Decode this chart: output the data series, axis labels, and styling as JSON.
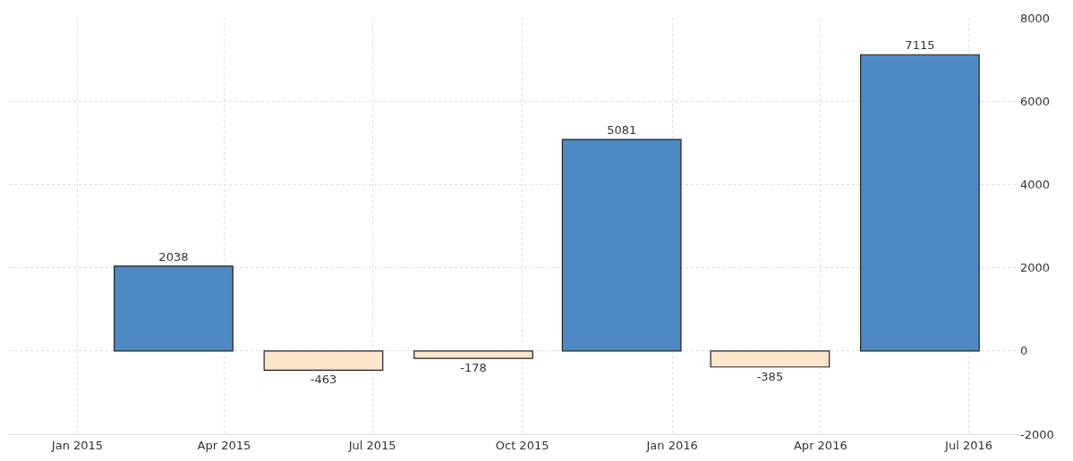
{
  "chart_data": {
    "type": "bar",
    "x": [
      "2015-03-01",
      "2015-06-01",
      "2015-09-01",
      "2015-12-01",
      "2016-03-01",
      "2016-06-01"
    ],
    "values": [
      2038,
      -463,
      -178,
      5081,
      -385,
      7115
    ],
    "colors": [
      "#4f89c3",
      "#fbe6cc",
      "#fbe6cc",
      "#4f89c3",
      "#fbe6cc",
      "#4f89c3"
    ],
    "data_labels": true,
    "xlim": [
      "2014-11-20",
      "2016-08-01"
    ],
    "xticks": [
      {
        "value": "2015-01-01",
        "label": "Jan 2015"
      },
      {
        "value": "2015-04-01",
        "label": "Apr 2015"
      },
      {
        "value": "2015-07-01",
        "label": "Jul 2015"
      },
      {
        "value": "2015-10-01",
        "label": "Oct 2015"
      },
      {
        "value": "2016-01-01",
        "label": "Jan 2016"
      },
      {
        "value": "2016-04-01",
        "label": "Apr 2016"
      },
      {
        "value": "2016-07-01",
        "label": "Jul 2016"
      }
    ],
    "ylim": [
      -2000,
      8000
    ],
    "yticks": [
      -2000,
      0,
      2000,
      4000,
      6000,
      8000
    ],
    "grid": true
  }
}
